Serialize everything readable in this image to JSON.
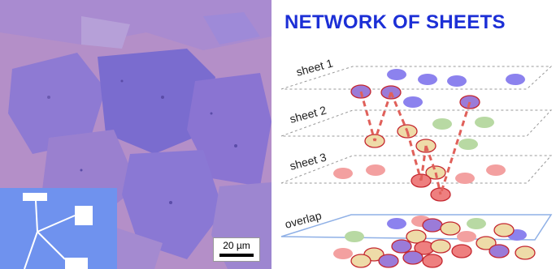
{
  "figure": {
    "title": "NETWORK OF SHEETS",
    "scalebar": "20 µm",
    "layers": [
      "sheet 1",
      "sheet 2",
      "sheet 3",
      "overlap"
    ]
  },
  "colors": {
    "title": "#1c2fd6",
    "sheet1": "#8c82ee",
    "sheet2": "#b8d9a3",
    "sheet3": "#f3a0a0",
    "highlight_purple": "#9b7bd8",
    "highlight_yellow": "#eedba8",
    "highlight_red": "#ee7f7f",
    "connection": "#e0605a",
    "photo_background": "#b48fc8"
  }
}
